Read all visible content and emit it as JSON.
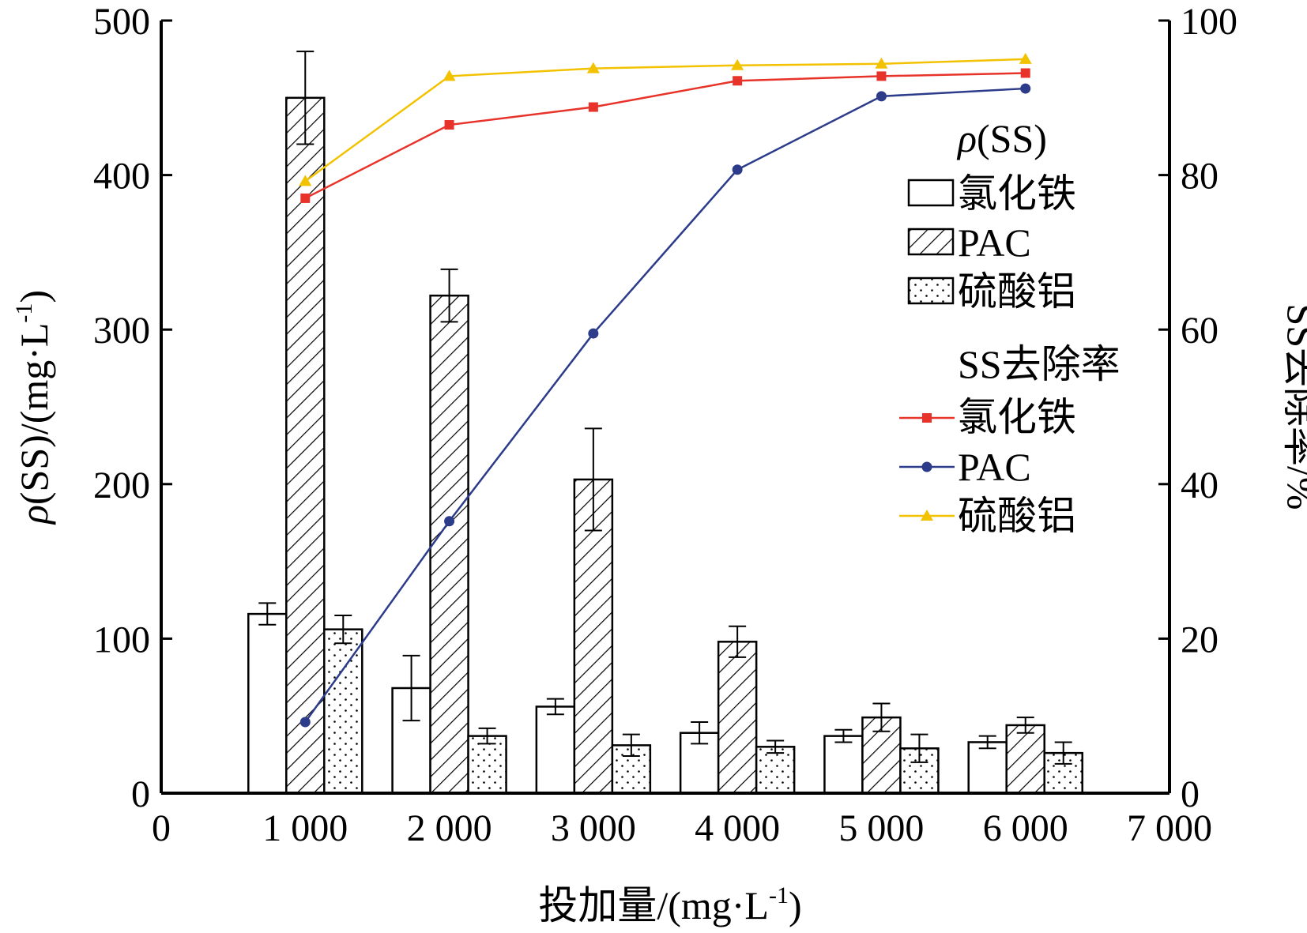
{
  "chart_data": {
    "type": "bar+line",
    "x_axis": {
      "label": "投加量/(mg·L",
      "label_sup": "-1",
      "label_end": ")",
      "range": [
        0,
        7000
      ],
      "ticks": [
        0,
        1000,
        2000,
        3000,
        4000,
        5000,
        6000,
        7000
      ],
      "tick_labels": [
        "0",
        "1 000",
        "2 000",
        "3 000",
        "4 000",
        "5 000",
        "6 000",
        "7 000"
      ]
    },
    "y_left": {
      "label_rho": "ρ",
      "label": "(SS)/(mg·L",
      "label_sup": "-1",
      "label_end": ")",
      "range": [
        0,
        500
      ],
      "ticks": [
        0,
        100,
        200,
        300,
        400,
        500
      ]
    },
    "y_right": {
      "label": "SS去除率/%",
      "range": [
        0,
        100
      ],
      "ticks": [
        0,
        20,
        40,
        60,
        80,
        100
      ]
    },
    "categories": [
      1000,
      2000,
      3000,
      4000,
      5000,
      6000
    ],
    "bar_series": [
      {
        "name": "氯化铁",
        "pattern": "none",
        "values": [
          116,
          68,
          56,
          39,
          37,
          33
        ],
        "errors": [
          7,
          21,
          5,
          7,
          4,
          4
        ]
      },
      {
        "name": "PAC",
        "pattern": "hatch",
        "values": [
          450,
          322,
          203,
          98,
          49,
          44
        ],
        "errors": [
          30,
          17,
          33,
          10,
          9,
          5
        ]
      },
      {
        "name": "硫酸铝",
        "pattern": "dots",
        "values": [
          106,
          37,
          31,
          30,
          29,
          26
        ],
        "errors": [
          9,
          5,
          7,
          4,
          9,
          7
        ]
      }
    ],
    "line_series": [
      {
        "name": "氯化铁",
        "color": "#e8332a",
        "marker": "square",
        "x": [
          1000,
          2000,
          3000,
          4000,
          5000,
          6000
        ],
        "y": [
          77,
          86.5,
          88.8,
          92.2,
          92.8,
          93.2
        ]
      },
      {
        "name": "PAC",
        "color": "#2c3b8a",
        "marker": "circle",
        "x": [
          1000,
          2000,
          3000,
          4000,
          5000,
          6000
        ],
        "y": [
          9.2,
          35.2,
          59.5,
          80.7,
          90.2,
          91.2
        ]
      },
      {
        "name": "硫酸铝",
        "color": "#f2c200",
        "marker": "triangle",
        "x": [
          1000,
          2000,
          3000,
          4000,
          5000,
          6000
        ],
        "y": [
          79.2,
          92.8,
          93.8,
          94.2,
          94.4,
          95
        ]
      }
    ],
    "legend": {
      "bar_title_rho": "ρ",
      "bar_title": "(SS)",
      "line_title": "SS去除率",
      "placement": "right-center"
    }
  }
}
